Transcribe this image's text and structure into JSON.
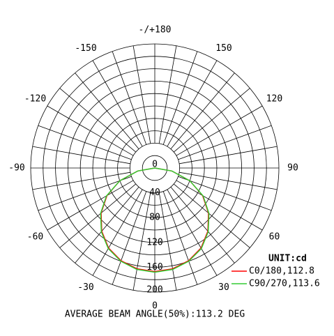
{
  "chart_data": {
    "type": "polar",
    "rlim": [
      0,
      200
    ],
    "rticks": [
      0,
      40,
      80,
      120,
      160,
      200
    ],
    "rgrid": [
      20,
      40,
      60,
      80,
      100,
      120,
      140,
      160,
      180,
      200
    ],
    "angle_ticks": [
      0,
      30,
      60,
      90,
      120,
      150,
      {
        "value": 180,
        "label": "-/+180"
      },
      -150,
      -120,
      -90,
      -60,
      -30
    ],
    "angle_grid": [
      -170,
      -160,
      -150,
      -140,
      -130,
      -120,
      -110,
      -100,
      -90,
      -80,
      -70,
      -60,
      -50,
      -40,
      -30,
      -20,
      -10,
      0,
      10,
      20,
      30,
      40,
      50,
      60,
      70,
      80,
      90,
      100,
      110,
      120,
      130,
      140,
      150,
      160,
      170,
      180
    ],
    "angles": [
      -90,
      -80,
      -70,
      -60,
      -50,
      -40,
      -30,
      -20,
      -10,
      0,
      10,
      20,
      30,
      40,
      50,
      60,
      70,
      80,
      90
    ],
    "series": [
      {
        "name": "C0/180,112.8",
        "color": "#ff0000",
        "values": [
          0,
          28,
          60,
          89,
          113,
          133,
          149,
          159,
          165,
          167,
          165,
          159,
          149,
          133,
          113,
          89,
          60,
          28,
          0
        ]
      },
      {
        "name": "C90/270,113.6",
        "color": "#33cc33",
        "values": [
          0,
          28,
          60,
          90,
          114,
          134,
          150,
          160,
          166,
          168,
          166,
          160,
          150,
          134,
          114,
          90,
          60,
          28,
          0
        ]
      }
    ],
    "unit": "UNIT:cd",
    "footer": "AVERAGE BEAM ANGLE(50%):113.2 DEG"
  }
}
